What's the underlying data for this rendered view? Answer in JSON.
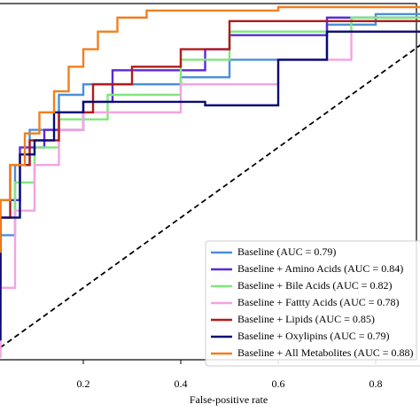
{
  "chart_data": {
    "type": "line",
    "step": true,
    "x_label": "False-positive rate",
    "xlim": [
      0,
      1
    ],
    "ylim": [
      0,
      1
    ],
    "xticks": [
      0.2,
      0.4,
      0.6,
      0.8
    ],
    "legend": "lower right",
    "series": [
      {
        "name": "Baseline (AUC = 0.79)",
        "color": "#4a90d9",
        "x": [
          0.03,
          0.03,
          0.06,
          0.06,
          0.09,
          0.09,
          0.15,
          0.15,
          0.2,
          0.2,
          0.4,
          0.4,
          0.5,
          0.5,
          0.7,
          0.7,
          0.8,
          0.8,
          0.9
        ],
        "values": [
          0.05,
          0.35,
          0.35,
          0.55,
          0.55,
          0.65,
          0.65,
          0.75,
          0.75,
          0.78,
          0.78,
          0.8,
          0.8,
          0.85,
          0.85,
          0.95,
          0.95,
          0.98,
          0.98
        ]
      },
      {
        "name": "Baseline + Amino Acids (AUC = 0.84)",
        "color": "#5a2ad6",
        "x": [
          0.03,
          0.03,
          0.07,
          0.07,
          0.12,
          0.12,
          0.2,
          0.2,
          0.26,
          0.26,
          0.45,
          0.45,
          0.5,
          0.5,
          0.7,
          0.7,
          0.9
        ],
        "values": [
          0.1,
          0.45,
          0.45,
          0.6,
          0.6,
          0.65,
          0.65,
          0.73,
          0.73,
          0.82,
          0.82,
          0.88,
          0.88,
          0.92,
          0.92,
          0.97,
          0.97
        ]
      },
      {
        "name": "Baseline + Bile Acids (AUC = 0.82)",
        "color": "#80e67c",
        "x": [
          0.03,
          0.06,
          0.06,
          0.1,
          0.1,
          0.15,
          0.15,
          0.25,
          0.25,
          0.4,
          0.4,
          0.5,
          0.5,
          0.75,
          0.75,
          0.9
        ],
        "values": [
          0.4,
          0.4,
          0.5,
          0.5,
          0.6,
          0.6,
          0.68,
          0.68,
          0.75,
          0.75,
          0.85,
          0.85,
          0.93,
          0.93,
          0.97,
          0.97
        ]
      },
      {
        "name": "Baseline + Fattty Acids (AUC = 0.78)",
        "color": "#f5a3e0",
        "x": [
          0.03,
          0.03,
          0.06,
          0.06,
          0.1,
          0.1,
          0.15,
          0.15,
          0.2,
          0.2,
          0.4,
          0.4,
          0.6,
          0.6,
          0.75,
          0.75,
          0.9
        ],
        "values": [
          0,
          0.2,
          0.2,
          0.42,
          0.42,
          0.55,
          0.55,
          0.65,
          0.65,
          0.7,
          0.7,
          0.78,
          0.78,
          0.85,
          0.85,
          0.93,
          0.93
        ]
      },
      {
        "name": "Baseline + Lipids (AUC = 0.85)",
        "color": "#b01c1c",
        "x": [
          0.03,
          0.03,
          0.05,
          0.05,
          0.09,
          0.09,
          0.15,
          0.15,
          0.22,
          0.22,
          0.3,
          0.3,
          0.4,
          0.4,
          0.5,
          0.5,
          0.9
        ],
        "values": [
          0.2,
          0.4,
          0.4,
          0.55,
          0.55,
          0.62,
          0.62,
          0.7,
          0.7,
          0.78,
          0.78,
          0.83,
          0.83,
          0.88,
          0.88,
          0.96,
          0.96
        ]
      },
      {
        "name": "Baseline + Oxylipins (AUC = 0.79)",
        "color": "#0a0a78",
        "x": [
          0.03,
          0.03,
          0.07,
          0.07,
          0.1,
          0.1,
          0.14,
          0.14,
          0.2,
          0.2,
          0.45,
          0.45,
          0.6,
          0.6,
          0.7,
          0.7,
          0.9
        ],
        "values": [
          0.05,
          0.4,
          0.4,
          0.58,
          0.58,
          0.62,
          0.62,
          0.7,
          0.7,
          0.73,
          0.73,
          0.72,
          0.72,
          0.85,
          0.85,
          0.93,
          0.93
        ]
      },
      {
        "name": "Baseline + All Metabolites (AUC = 0.88)",
        "color": "#f07f1e",
        "x": [
          0.03,
          0.03,
          0.05,
          0.05,
          0.08,
          0.08,
          0.11,
          0.11,
          0.14,
          0.14,
          0.17,
          0.17,
          0.2,
          0.2,
          0.23,
          0.23,
          0.27,
          0.27,
          0.33,
          0.33,
          0.6,
          0.6,
          0.9
        ],
        "values": [
          0.3,
          0.45,
          0.45,
          0.55,
          0.55,
          0.64,
          0.64,
          0.7,
          0.7,
          0.76,
          0.76,
          0.83,
          0.83,
          0.88,
          0.88,
          0.93,
          0.93,
          0.97,
          0.97,
          0.99,
          0.99,
          1,
          1
        ]
      }
    ]
  }
}
